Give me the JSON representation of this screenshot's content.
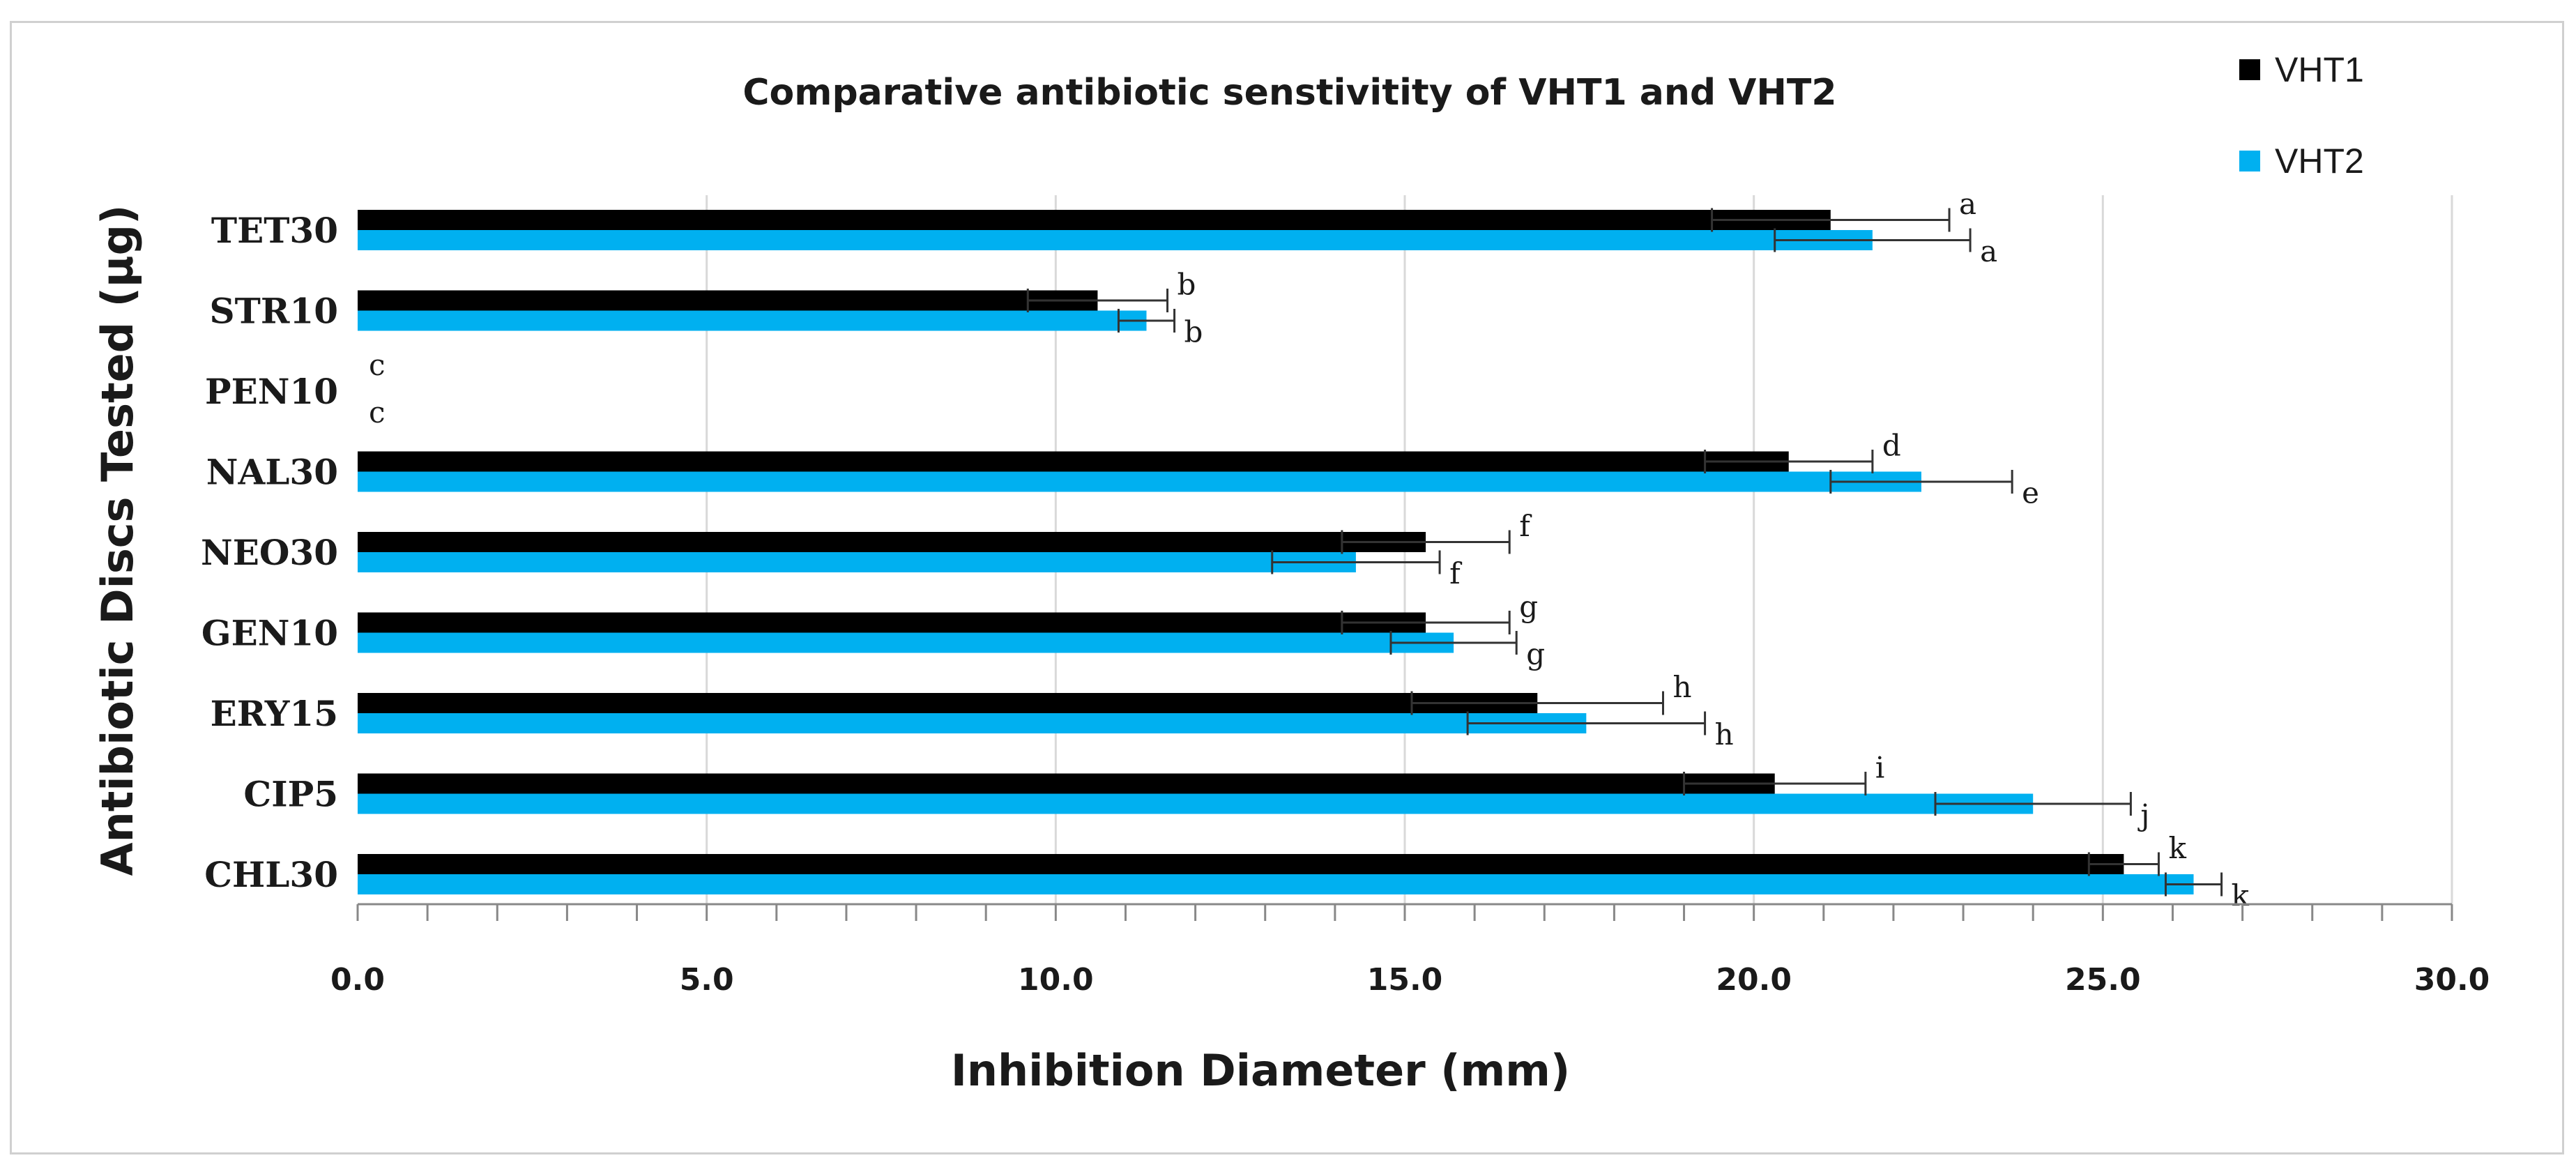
{
  "chart_data": {
    "type": "bar",
    "orientation": "horizontal",
    "title": "Comparative antibiotic senstivitity of VHT1 and VHT2",
    "xlabel": "Inhibition Diameter (mm)",
    "ylabel": "Antibiotic Discs Tested (µg)",
    "xlim": [
      0,
      30
    ],
    "x_ticks": [
      "0.0",
      "5.0",
      "10.0",
      "15.0",
      "20.0",
      "25.0",
      "30.0"
    ],
    "x_tick_values": [
      0,
      5,
      10,
      15,
      20,
      25,
      30
    ],
    "grid": "vertical",
    "legend_position": "top-right",
    "categories": [
      "TET30",
      "STR10",
      "PEN10",
      "NAL30",
      "NEO30",
      "GEN10",
      "ERY15",
      "CIP5",
      "CHL30"
    ],
    "series": [
      {
        "name": "VHT1",
        "color": "#000000",
        "values": [
          21.1,
          10.6,
          0,
          20.5,
          15.3,
          15.3,
          16.9,
          20.3,
          25.3
        ],
        "errors": [
          1.7,
          1.0,
          0,
          1.2,
          1.2,
          1.2,
          1.8,
          1.3,
          0.5
        ],
        "letters": [
          "a",
          "b",
          "c",
          "d",
          "f",
          "g",
          "h",
          "i",
          "k"
        ]
      },
      {
        "name": "VHT2",
        "color": "#00b0f0",
        "values": [
          21.7,
          11.3,
          0,
          22.4,
          14.3,
          15.7,
          17.6,
          24.0,
          26.3
        ],
        "errors": [
          1.4,
          0.4,
          0,
          1.3,
          1.2,
          0.9,
          1.7,
          1.4,
          0.4
        ],
        "letters": [
          "a",
          "b",
          "c",
          "e",
          "f",
          "g",
          "h",
          "j",
          "k"
        ]
      }
    ]
  }
}
